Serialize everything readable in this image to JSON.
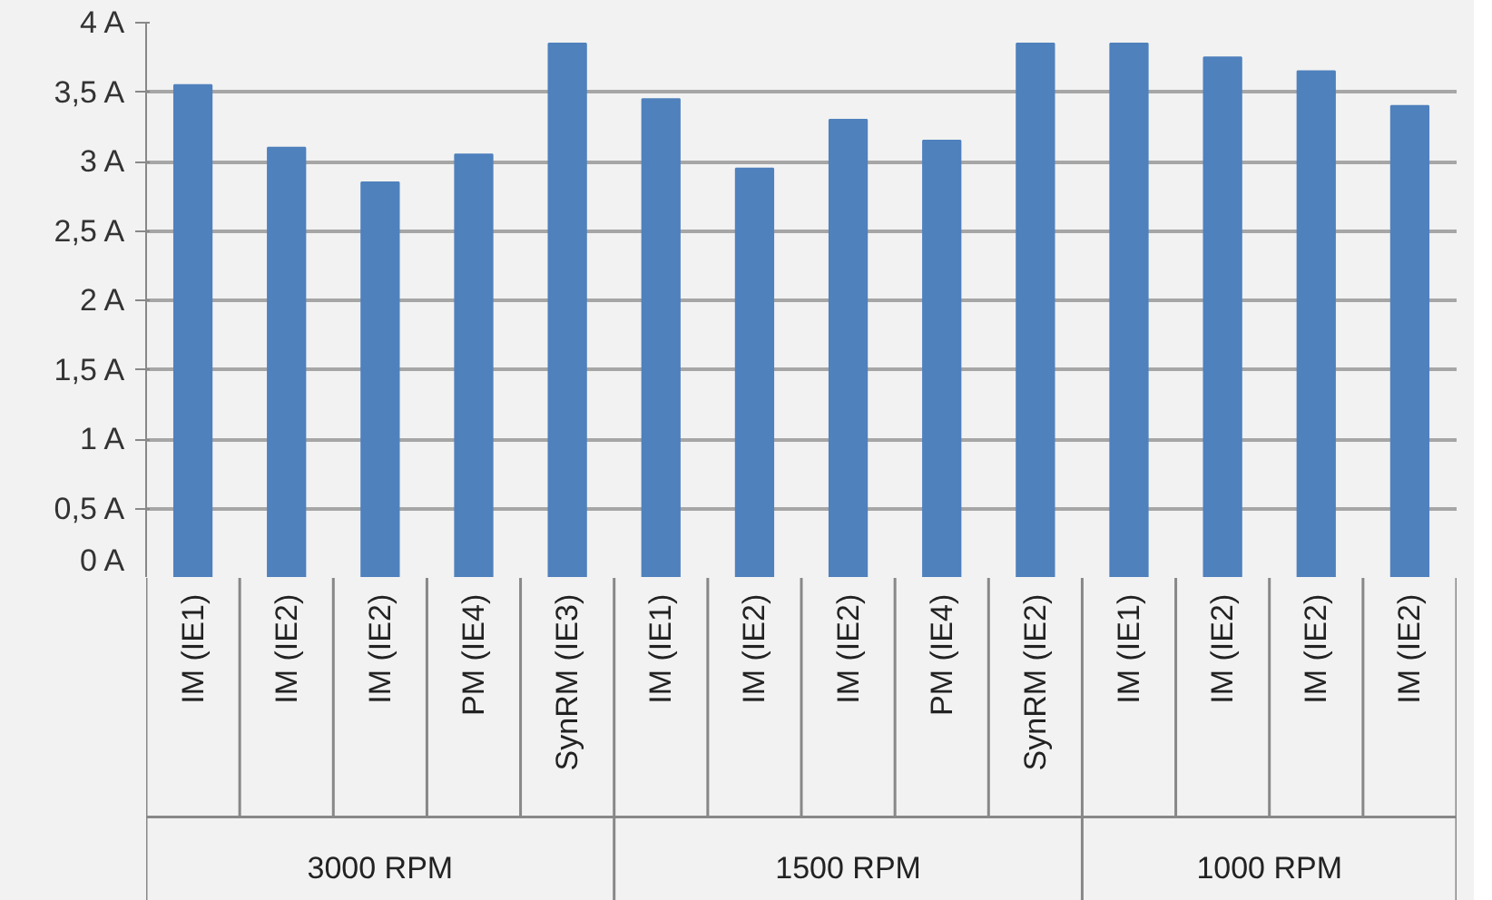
{
  "chart_data": {
    "type": "bar",
    "categories": [
      "IM (IE1)",
      "IM (IE2)",
      "IM (IE2)",
      "PM (IE4)",
      "SynRM (IE3)",
      "IM (IE1)",
      "IM (IE2)",
      "IM (IE2)",
      "PM (IE4)",
      "SynRM (IE2)",
      "IM (IE1)",
      "IM (IE2)",
      "IM (IE2)",
      "IM (IE2)"
    ],
    "values": [
      3.55,
      3.1,
      2.85,
      3.05,
      3.85,
      3.45,
      2.95,
      3.3,
      3.15,
      3.85,
      3.85,
      3.75,
      3.65,
      3.4
    ],
    "color": "#4f81bd",
    "ylim": [
      0,
      4
    ],
    "yticks": [
      {
        "value": 0,
        "label": "0 A"
      },
      {
        "value": 0.5,
        "label": "0,5 A"
      },
      {
        "value": 1,
        "label": "1 A"
      },
      {
        "value": 1.5,
        "label": "1,5 A"
      },
      {
        "value": 2,
        "label": "2 A"
      },
      {
        "value": 2.5,
        "label": "2,5 A"
      },
      {
        "value": 3,
        "label": "3 A"
      },
      {
        "value": 3.5,
        "label": "3,5 A"
      },
      {
        "value": 4,
        "label": "4 A"
      }
    ],
    "grid": "y",
    "annotations": [
      "3000 RPM",
      "1500 RPM",
      "1000 RPM"
    ]
  }
}
